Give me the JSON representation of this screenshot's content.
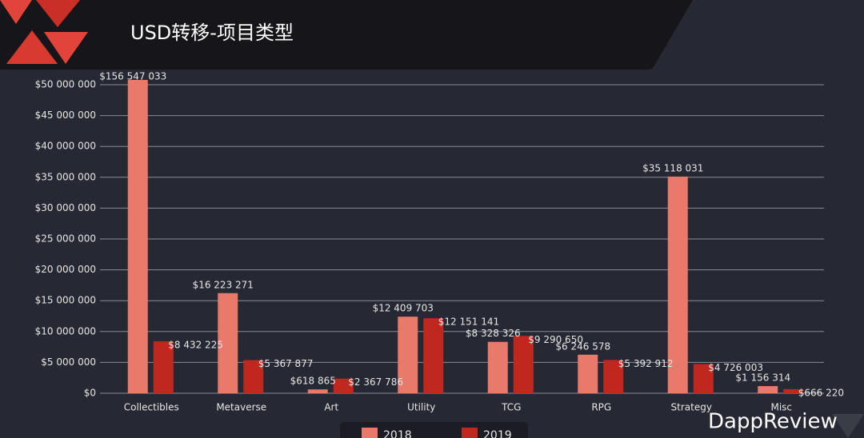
{
  "chart_data": {
    "type": "bar",
    "title": "USD转移-项目类型",
    "watermark": "DappReview",
    "categories": [
      "Collectibles",
      "Metaverse",
      "Art",
      "Utility",
      "TCG",
      "RPG",
      "Strategy",
      "Misc"
    ],
    "series": [
      {
        "name": "2018",
        "color": "#e8796b",
        "values": [
          156547033,
          16223271,
          618865,
          12409703,
          8328326,
          6246578,
          35118031,
          1156314
        ],
        "value_labels": [
          "$156 547 033",
          "$16 223 271",
          "$618 865",
          "$12 409 703",
          "$8 328 326",
          "$6 246 578",
          "$35 118 031",
          "$1 156 314"
        ]
      },
      {
        "name": "2019",
        "color": "#c0281f",
        "values": [
          8432225,
          5367877,
          2367786,
          12151141,
          9290650,
          5392912,
          4726003,
          666220
        ],
        "value_labels": [
          "$8 432 225",
          "$5 367 877",
          "$2 367 786",
          "$12 151 141",
          "$9 290 650",
          "$5 392 912",
          "$4 726 003",
          "$666 220"
        ]
      }
    ],
    "ylim": [
      0,
      50000000
    ],
    "yticks": [
      {
        "value": 0,
        "label": "$0"
      },
      {
        "value": 5000000,
        "label": "$5 000 000"
      },
      {
        "value": 10000000,
        "label": "$10 000 000"
      },
      {
        "value": 15000000,
        "label": "$15 000 000"
      },
      {
        "value": 20000000,
        "label": "$20 000 000"
      },
      {
        "value": 25000000,
        "label": "$25 000 000"
      },
      {
        "value": 30000000,
        "label": "$30 000 000"
      },
      {
        "value": 35000000,
        "label": "$35 000 000"
      },
      {
        "value": 40000000,
        "label": "$40 000 000"
      },
      {
        "value": 45000000,
        "label": "$45 000 000"
      },
      {
        "value": 50000000,
        "label": "$50 000 000"
      }
    ],
    "grid": true
  }
}
